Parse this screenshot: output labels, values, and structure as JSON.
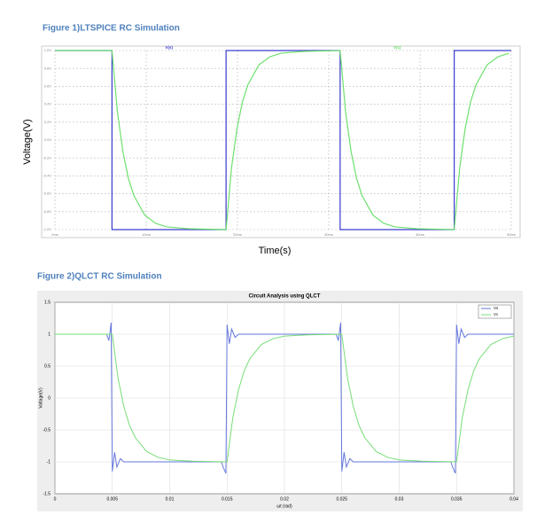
{
  "chart_data": [
    {
      "type": "line",
      "caption": "Figure 1)LTSPICE RC Simulation",
      "xlabel": "Time(s)",
      "ylabel": "Voltage(V)",
      "xlim": [
        0,
        50
      ],
      "ylim": [
        -1,
        1
      ],
      "grid": true,
      "xticks": [
        {
          "value": 0,
          "label": "0ms"
        },
        {
          "value": 10,
          "label": "10ms"
        },
        {
          "value": 20,
          "label": "20ms"
        },
        {
          "value": 30,
          "label": "30ms"
        },
        {
          "value": 40,
          "label": "40ms"
        },
        {
          "value": 50,
          "label": "50ms"
        }
      ],
      "yticks": [
        {
          "value": 1,
          "label": "1.0V"
        },
        {
          "value": 0.8,
          "label": "0.8V"
        },
        {
          "value": 0.6,
          "label": "0.6V"
        },
        {
          "value": 0.4,
          "label": "0.4V"
        },
        {
          "value": 0.2,
          "label": "0.2V"
        },
        {
          "value": 0,
          "label": "0.0V"
        },
        {
          "value": -0.2,
          "label": "-0.2V"
        },
        {
          "value": -0.4,
          "label": "-0.4V"
        },
        {
          "value": -0.6,
          "label": "-0.6V"
        },
        {
          "value": -0.8,
          "label": "-0.8V"
        },
        {
          "value": -1,
          "label": "-1.0V"
        }
      ],
      "series": [
        {
          "name": "V(s)",
          "color": "#3a3ad0",
          "x": [
            0,
            6.25,
            6.25,
            18.75,
            18.75,
            31.25,
            31.25,
            43.75,
            43.75,
            50
          ],
          "values": [
            1,
            1,
            -1,
            -1,
            1,
            1,
            -1,
            -1,
            1,
            1
          ]
        },
        {
          "name": "V(c)",
          "color": "#6ee06e",
          "x": [
            0,
            6.25,
            6.85,
            7.45,
            8.05,
            8.65,
            9.85,
            11.05,
            12.25,
            14.65,
            18.75,
            19.35,
            19.95,
            20.55,
            21.15,
            22.35,
            23.55,
            24.75,
            27.15,
            31.25,
            31.85,
            32.45,
            33.05,
            33.65,
            34.85,
            36.05,
            37.25,
            39.65,
            43.75,
            44.35,
            44.95,
            45.55,
            46.15,
            47.35,
            48.55,
            49.75
          ],
          "values": [
            1,
            1,
            0.31,
            -0.13,
            -0.43,
            -0.62,
            -0.84,
            -0.93,
            -0.97,
            -0.99,
            -1,
            -0.31,
            0.13,
            0.43,
            0.62,
            0.84,
            0.93,
            0.97,
            0.99,
            1,
            0.31,
            -0.13,
            -0.43,
            -0.62,
            -0.84,
            -0.93,
            -0.97,
            -0.99,
            -1,
            -0.31,
            0.13,
            0.43,
            0.62,
            0.84,
            0.93,
            0.97
          ]
        }
      ]
    },
    {
      "type": "line",
      "caption": "Figure 2)QLCT RC Simulation",
      "title": "Circuit Analysis using QLCT",
      "xlabel": "ωt (rad)",
      "ylabel": "Voltage(V)",
      "xlim": [
        0,
        0.04
      ],
      "ylim": [
        -1.5,
        1.5
      ],
      "grid": true,
      "legend": "upper right",
      "xticks": [
        0,
        0.005,
        0.01,
        0.015,
        0.02,
        0.025,
        0.03,
        0.035,
        0.04
      ],
      "yticks": [
        1.5,
        1,
        0.5,
        0,
        -0.5,
        -1,
        -1.5
      ],
      "series": [
        {
          "name": "Vs",
          "color": "#6677dd",
          "x": [
            0,
            0.0045,
            0.0047,
            0.0049,
            0.005,
            0.0052,
            0.0054,
            0.0057,
            0.006,
            0.0145,
            0.0147,
            0.0149,
            0.015,
            0.0152,
            0.0154,
            0.0157,
            0.016,
            0.0245,
            0.0247,
            0.0249,
            0.025,
            0.0252,
            0.0254,
            0.0257,
            0.026,
            0.0345,
            0.0347,
            0.0349,
            0.035,
            0.0352,
            0.0354,
            0.0357,
            0.036,
            0.04
          ],
          "values": [
            1,
            1,
            0.9,
            1.18,
            -1.15,
            -0.85,
            -1.08,
            -0.95,
            -1,
            -1,
            -1.1,
            -1.18,
            1.15,
            0.85,
            1.08,
            0.95,
            1,
            1,
            0.9,
            1.18,
            -1.15,
            -0.85,
            -1.08,
            -0.95,
            -1,
            -1,
            -1.1,
            -1.18,
            1.15,
            0.85,
            1.08,
            0.95,
            1,
            1
          ]
        },
        {
          "name": "Vc",
          "color": "#77dd77",
          "x": [
            0,
            0.005,
            0.0055,
            0.006,
            0.0065,
            0.007,
            0.008,
            0.009,
            0.01,
            0.012,
            0.015,
            0.0155,
            0.016,
            0.0165,
            0.017,
            0.018,
            0.019,
            0.02,
            0.022,
            0.025,
            0.0255,
            0.026,
            0.0265,
            0.027,
            0.028,
            0.029,
            0.03,
            0.032,
            0.035,
            0.0355,
            0.036,
            0.0365,
            0.037,
            0.038,
            0.039,
            0.04
          ],
          "values": [
            1,
            1,
            0.31,
            -0.13,
            -0.43,
            -0.62,
            -0.84,
            -0.93,
            -0.97,
            -0.99,
            -1,
            -0.31,
            0.13,
            0.43,
            0.62,
            0.84,
            0.93,
            0.97,
            0.99,
            1,
            0.31,
            -0.13,
            -0.43,
            -0.62,
            -0.84,
            -0.93,
            -0.97,
            -0.99,
            -1,
            -0.31,
            0.13,
            0.43,
            0.62,
            0.84,
            0.93,
            0.97
          ]
        }
      ]
    }
  ]
}
